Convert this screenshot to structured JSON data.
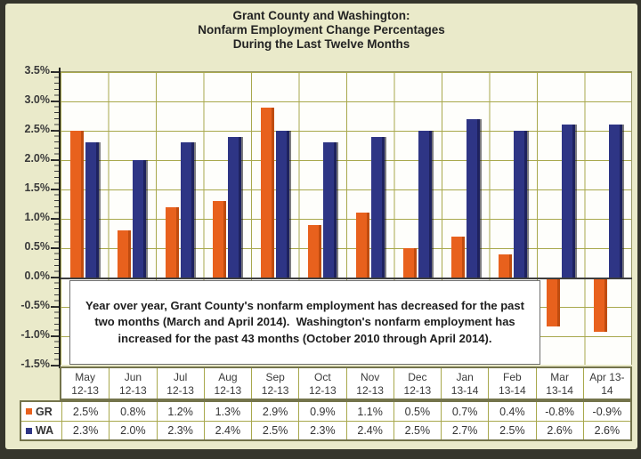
{
  "title": {
    "line1": "Grant County and Washington:",
    "line2": "Nonfarm Employment Change Percentages",
    "line3": "During the Last Twelve Months"
  },
  "chart_data": {
    "type": "bar",
    "title": "Grant County and Washington: Nonfarm Employment Change Percentages During the Last Twelve Months",
    "categories": [
      "May 12-13",
      "Jun 12-13",
      "Jul 12-13",
      "Aug 12-13",
      "Sep 12-13",
      "Oct 12-13",
      "Nov 12-13",
      "Dec 12-13",
      "Jan 13-14",
      "Feb 13-14",
      "Mar 13-14",
      "Apr 13-14"
    ],
    "series": [
      {
        "name": "GR",
        "color": "#E8611D",
        "values": [
          2.5,
          0.8,
          1.2,
          1.3,
          2.9,
          0.9,
          1.1,
          0.5,
          0.7,
          0.4,
          -0.8,
          -0.9
        ]
      },
      {
        "name": "WA",
        "color": "#2E3585",
        "values": [
          2.3,
          2.0,
          2.3,
          2.4,
          2.5,
          2.3,
          2.4,
          2.5,
          2.7,
          2.5,
          2.6,
          2.6
        ]
      }
    ],
    "ylabel": "",
    "xlabel": "",
    "ylim": [
      -1.5,
      3.5
    ],
    "ytick_step": 0.5,
    "ytick_labels": [
      "3.5%",
      "3.0%",
      "2.5%",
      "2.0%",
      "1.5%",
      "1.0%",
      "0.5%",
      "0.0%",
      "-0.5%",
      "-1.0%",
      "-1.5%"
    ],
    "grid": true,
    "legend_position": "table-left"
  },
  "annotation": {
    "text": "Year over year, Grant County's nonfarm employment has decreased for the past two months (March and April 2014).  Washington's nonfarm employment has increased for the past 43 months (October 2010 through April 2014)."
  },
  "table": {
    "columns": [
      [
        "May",
        "12-13"
      ],
      [
        "Jun",
        "12-13"
      ],
      [
        "Jul",
        "12-13"
      ],
      [
        "Aug",
        "12-13"
      ],
      [
        "Sep",
        "12-13"
      ],
      [
        "Oct",
        "12-13"
      ],
      [
        "Nov",
        "12-13"
      ],
      [
        "Dec",
        "12-13"
      ],
      [
        "Jan",
        "13-14"
      ],
      [
        "Feb",
        "13-14"
      ],
      [
        "Mar",
        "13-14"
      ],
      [
        "Apr 13-",
        "14"
      ]
    ],
    "rows": [
      {
        "label": "GR",
        "color": "#E8611D",
        "values": [
          "2.5%",
          "0.8%",
          "1.2%",
          "1.3%",
          "2.9%",
          "0.9%",
          "1.1%",
          "0.5%",
          "0.7%",
          "0.4%",
          "-0.8%",
          "-0.9%"
        ]
      },
      {
        "label": "WA",
        "color": "#2E3585",
        "values": [
          "2.3%",
          "2.0%",
          "2.3%",
          "2.4%",
          "2.5%",
          "2.3%",
          "2.4%",
          "2.5%",
          "2.7%",
          "2.5%",
          "2.6%",
          "2.6%"
        ]
      }
    ]
  },
  "colors": {
    "gr_bar": "#E8611D",
    "wa_bar": "#2E3585",
    "gridline": "#A8A84C",
    "page_background": "#EAEACA",
    "plot_background": "#FEFEFB",
    "frame": "#35352C"
  }
}
